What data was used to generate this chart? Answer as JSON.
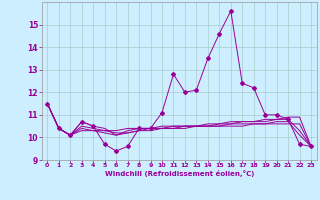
{
  "xlabel": "Windchill (Refroidissement éolien,°C)",
  "background_color": "#cceeff",
  "grid_color": "#aacccc",
  "line_color": "#990099",
  "x": [
    0,
    1,
    2,
    3,
    4,
    5,
    6,
    7,
    8,
    9,
    10,
    11,
    12,
    13,
    14,
    15,
    16,
    17,
    18,
    19,
    20,
    21,
    22,
    23
  ],
  "series1": [
    11.5,
    10.4,
    10.1,
    10.7,
    10.5,
    9.7,
    9.4,
    9.6,
    10.4,
    10.4,
    11.1,
    12.8,
    12.0,
    12.1,
    13.5,
    14.6,
    15.6,
    12.4,
    12.2,
    11.0,
    11.0,
    10.8,
    9.7,
    9.6
  ],
  "series2": [
    11.5,
    10.4,
    10.1,
    10.4,
    10.3,
    10.2,
    10.1,
    10.2,
    10.3,
    10.4,
    10.4,
    10.5,
    10.5,
    10.5,
    10.6,
    10.6,
    10.7,
    10.7,
    10.7,
    10.8,
    10.8,
    10.9,
    10.9,
    9.6
  ],
  "series3": [
    11.5,
    10.4,
    10.1,
    10.3,
    10.3,
    10.3,
    10.3,
    10.4,
    10.4,
    10.4,
    10.4,
    10.4,
    10.5,
    10.5,
    10.5,
    10.5,
    10.5,
    10.5,
    10.6,
    10.6,
    10.6,
    10.6,
    10.6,
    9.6
  ],
  "series4": [
    11.5,
    10.4,
    10.1,
    10.5,
    10.4,
    10.3,
    10.2,
    10.2,
    10.3,
    10.3,
    10.4,
    10.4,
    10.4,
    10.5,
    10.5,
    10.5,
    10.6,
    10.6,
    10.6,
    10.6,
    10.7,
    10.7,
    10.1,
    9.6
  ],
  "series5": [
    11.5,
    10.4,
    10.1,
    10.7,
    10.5,
    10.4,
    10.1,
    10.3,
    10.4,
    10.4,
    10.5,
    10.5,
    10.5,
    10.5,
    10.5,
    10.6,
    10.6,
    10.7,
    10.7,
    10.7,
    10.8,
    10.8,
    10.3,
    9.6
  ],
  "ylim": [
    9,
    16
  ],
  "yticks": [
    9,
    10,
    11,
    12,
    13,
    14,
    15
  ],
  "xticks": [
    0,
    1,
    2,
    3,
    4,
    5,
    6,
    7,
    8,
    9,
    10,
    11,
    12,
    13,
    14,
    15,
    16,
    17,
    18,
    19,
    20,
    21,
    22,
    23
  ]
}
